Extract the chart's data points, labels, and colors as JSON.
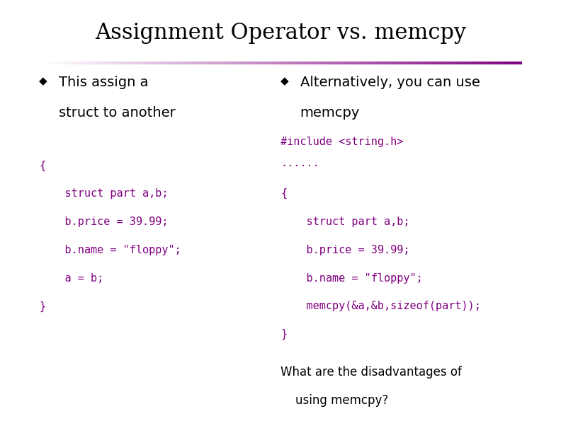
{
  "title": "Assignment Operator vs. memcpy",
  "title_fontsize": 22,
  "title_font": "serif",
  "bg_color": "#ffffff",
  "text_color_black": "#000000",
  "text_color_purple": "#800080",
  "bullet1_line1": "This assign a",
  "bullet1_line2": "struct to another",
  "bullet2_line1": "Alternatively, you can use",
  "bullet2_line2": "memcpy",
  "left_code": [
    "{",
    "    struct part a,b;",
    "    b.price = 39.99;",
    "    b.name = \"floppy\";",
    "    a = b;",
    "}"
  ],
  "right_include": "#include <string.h>",
  "right_dots": "......",
  "right_code": [
    "{",
    "    struct part a,b;",
    "    b.price = 39.99;",
    "    b.name = \"floppy\";",
    "    memcpy(&a,&b,sizeof(part));",
    "}"
  ],
  "right_question_line1": "What are the disadvantages of",
  "right_question_line2": "    using memcpy?",
  "code_fontsize": 11,
  "bullet_fontsize": 14,
  "question_fontsize": 12,
  "fig_width": 7.92,
  "fig_height": 6.12,
  "dpi": 100
}
